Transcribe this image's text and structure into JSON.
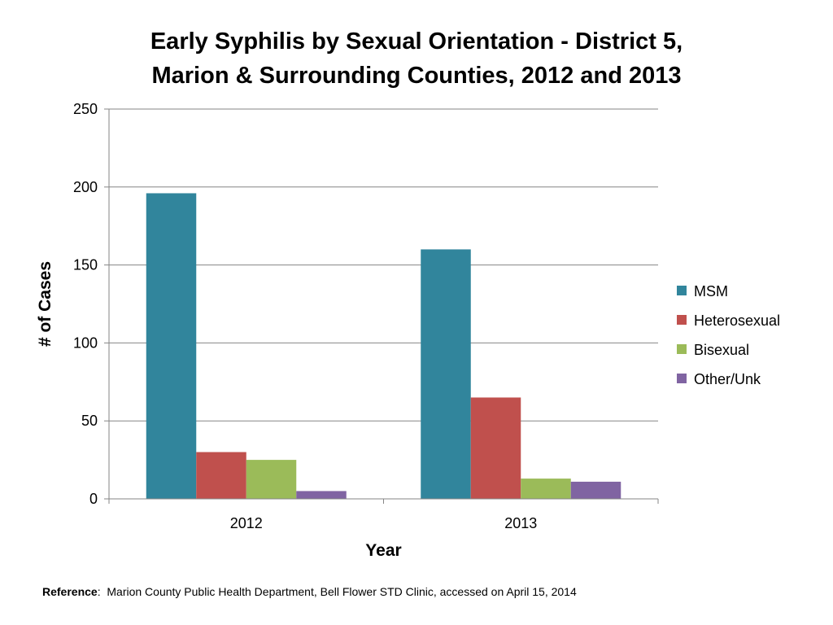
{
  "title_line1": "Early Syphilis by Sexual Orientation - District 5,",
  "title_line2": "Marion & Surrounding Counties, 2012 and 2013",
  "reference": {
    "label": "Reference",
    "separator": ":",
    "text": "Marion County Public Health Department, Bell Flower STD Clinic, accessed on April 15, 2014"
  },
  "chart_data": {
    "type": "bar",
    "title": "Early Syphilis by Sexual Orientation - District 5, Marion & Surrounding Counties, 2012 and 2013",
    "xlabel": "Year",
    "ylabel": "# of Cases",
    "categories": [
      "2012",
      "2013"
    ],
    "ylim": [
      0,
      250
    ],
    "yticks": [
      0,
      50,
      100,
      150,
      200,
      250
    ],
    "grid": true,
    "legend_position": "right",
    "series": [
      {
        "name": "MSM",
        "color": "#31859C",
        "values": [
          196,
          160
        ]
      },
      {
        "name": "Heterosexual",
        "color": "#C0504D",
        "values": [
          30,
          65
        ]
      },
      {
        "name": "Bisexual",
        "color": "#9BBB59",
        "values": [
          25,
          13
        ]
      },
      {
        "name": "Other/Unk",
        "color": "#8064A2",
        "values": [
          5,
          11
        ]
      }
    ]
  }
}
